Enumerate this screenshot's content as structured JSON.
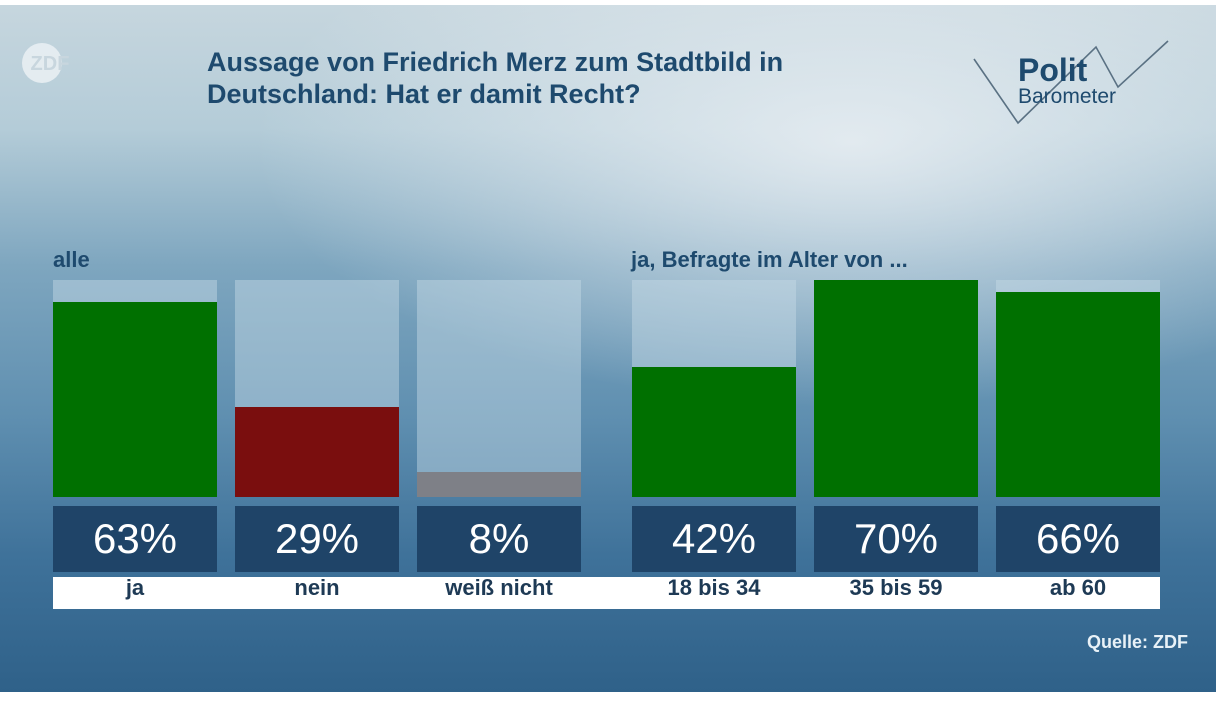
{
  "header": {
    "logo_text": "ZDF",
    "title_line1": "Aussage von Friedrich Merz zum Stadtbild in",
    "title_line2": "Deutschland: Hat er damit Recht?",
    "brand_line1": "Polit",
    "brand_line2": "Barometer"
  },
  "colors": {
    "ja": "#007000",
    "nein": "#7a0e0e",
    "weiss_nicht": "#7e8087",
    "value_box": "#1f4468",
    "title": "#1e4a6e"
  },
  "source": "Quelle: ZDF",
  "chart_data": {
    "type": "bar",
    "title": "Aussage von Friedrich Merz zum Stadtbild in Deutschland: Hat er damit Recht?",
    "ylim": [
      0,
      70
    ],
    "groups": [
      {
        "label": "alle",
        "categories": [
          "ja",
          "nein",
          "weiß nicht"
        ],
        "values": [
          63,
          29,
          8
        ],
        "value_labels": [
          "63%",
          "29%",
          "8%"
        ],
        "colors": [
          "#007000",
          "#7a0e0e",
          "#7e8087"
        ]
      },
      {
        "label": "ja, Befragte im Alter von ...",
        "categories": [
          "18 bis 34",
          "35 bis 59",
          "ab 60"
        ],
        "values": [
          42,
          70,
          66
        ],
        "value_labels": [
          "42%",
          "70%",
          "66%"
        ],
        "colors": [
          "#007000",
          "#007000",
          "#007000"
        ]
      }
    ]
  }
}
